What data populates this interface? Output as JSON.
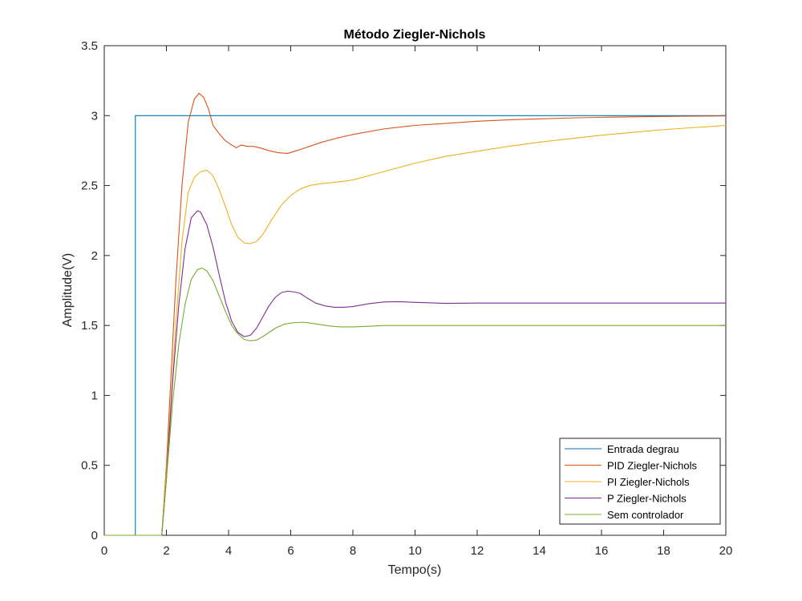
{
  "chart_data": {
    "type": "line",
    "title": "Método Ziegler-Nichols",
    "xlabel": "Tempo(s)",
    "ylabel": "Amplitude(V)",
    "xlim": [
      0,
      20
    ],
    "ylim": [
      0,
      3.5
    ],
    "xticks": [
      0,
      2,
      4,
      6,
      8,
      10,
      12,
      14,
      16,
      18,
      20
    ],
    "yticks": [
      0,
      0.5,
      1,
      1.5,
      2,
      2.5,
      3,
      3.5
    ],
    "xtick_labels": [
      "0",
      "2",
      "4",
      "6",
      "8",
      "10",
      "12",
      "14",
      "16",
      "18",
      "20"
    ],
    "ytick_labels": [
      "0",
      "0.5",
      "1",
      "1.5",
      "2",
      "2.5",
      "3",
      "3.5"
    ],
    "grid": false,
    "legend_position": "bottom-right",
    "series": [
      {
        "name": "Entrada degrau",
        "color": "#0072BD",
        "x": [
          0,
          1,
          1,
          20
        ],
        "y": [
          0,
          0,
          3,
          3
        ]
      },
      {
        "name": "PID Ziegler-Nichols",
        "color": "#D95319",
        "x": [
          0,
          1.85,
          2.0,
          2.3,
          2.5,
          2.7,
          2.9,
          3.05,
          3.2,
          3.35,
          3.5,
          3.7,
          3.9,
          4.1,
          4.25,
          4.4,
          4.6,
          4.8,
          5.0,
          5.3,
          5.6,
          5.9,
          6.2,
          6.6,
          7.0,
          7.5,
          8,
          9,
          10,
          11,
          12,
          13,
          14,
          15,
          16,
          17,
          18,
          19,
          20
        ],
        "y": [
          0,
          0,
          0.5,
          1.8,
          2.5,
          2.95,
          3.12,
          3.16,
          3.13,
          3.05,
          2.93,
          2.87,
          2.82,
          2.79,
          2.77,
          2.79,
          2.78,
          2.78,
          2.77,
          2.75,
          2.735,
          2.73,
          2.75,
          2.78,
          2.81,
          2.84,
          2.865,
          2.905,
          2.93,
          2.945,
          2.96,
          2.97,
          2.977,
          2.983,
          2.988,
          2.991,
          2.994,
          2.996,
          2.998
        ]
      },
      {
        "name": "PI Ziegler-Nichols",
        "color": "#EDB120",
        "x": [
          0,
          1.85,
          2.0,
          2.3,
          2.5,
          2.7,
          2.9,
          3.1,
          3.3,
          3.5,
          3.7,
          3.9,
          4.1,
          4.3,
          4.5,
          4.7,
          4.9,
          5.1,
          5.4,
          5.7,
          6.0,
          6.3,
          6.6,
          7.0,
          7.5,
          8,
          8.5,
          9,
          9.5,
          10,
          11,
          12,
          13,
          14,
          15,
          16,
          17,
          18,
          19,
          20
        ],
        "y": [
          0,
          0,
          0.45,
          1.5,
          2.1,
          2.45,
          2.56,
          2.6,
          2.61,
          2.57,
          2.47,
          2.35,
          2.22,
          2.13,
          2.09,
          2.085,
          2.1,
          2.15,
          2.26,
          2.36,
          2.43,
          2.475,
          2.5,
          2.515,
          2.525,
          2.54,
          2.57,
          2.6,
          2.63,
          2.66,
          2.71,
          2.745,
          2.78,
          2.81,
          2.835,
          2.86,
          2.88,
          2.9,
          2.915,
          2.93
        ]
      },
      {
        "name": "P Ziegler-Nichols",
        "color": "#7E2F8E",
        "x": [
          0,
          1.85,
          2.0,
          2.2,
          2.4,
          2.6,
          2.8,
          3.0,
          3.1,
          3.3,
          3.5,
          3.7,
          3.9,
          4.1,
          4.3,
          4.5,
          4.7,
          4.9,
          5.1,
          5.3,
          5.5,
          5.7,
          5.9,
          6.1,
          6.3,
          6.5,
          6.8,
          7.1,
          7.4,
          7.7,
          8.0,
          8.5,
          9.0,
          9.5,
          10,
          11,
          12,
          14,
          16,
          18,
          20
        ],
        "y": [
          0,
          0,
          0.4,
          1.1,
          1.65,
          2.05,
          2.27,
          2.32,
          2.31,
          2.22,
          2.06,
          1.86,
          1.67,
          1.53,
          1.45,
          1.42,
          1.43,
          1.48,
          1.56,
          1.64,
          1.7,
          1.735,
          1.745,
          1.74,
          1.73,
          1.7,
          1.66,
          1.64,
          1.63,
          1.63,
          1.635,
          1.655,
          1.668,
          1.67,
          1.665,
          1.658,
          1.66,
          1.66,
          1.66,
          1.66,
          1.66
        ]
      },
      {
        "name": "Sem controlador",
        "color": "#77AC30",
        "x": [
          0,
          1.85,
          2.0,
          2.2,
          2.4,
          2.6,
          2.8,
          3.0,
          3.15,
          3.3,
          3.5,
          3.7,
          3.9,
          4.1,
          4.3,
          4.5,
          4.7,
          4.9,
          5.1,
          5.3,
          5.5,
          5.8,
          6.1,
          6.4,
          6.7,
          7.0,
          7.3,
          7.6,
          8.0,
          8.5,
          9,
          10,
          11,
          12,
          14,
          16,
          18,
          20
        ],
        "y": [
          0,
          0,
          0.4,
          0.95,
          1.37,
          1.65,
          1.83,
          1.9,
          1.91,
          1.89,
          1.82,
          1.71,
          1.6,
          1.5,
          1.44,
          1.4,
          1.39,
          1.395,
          1.42,
          1.45,
          1.48,
          1.51,
          1.52,
          1.523,
          1.515,
          1.505,
          1.495,
          1.49,
          1.49,
          1.494,
          1.5,
          1.5,
          1.5,
          1.5,
          1.5,
          1.5,
          1.5,
          1.5
        ]
      }
    ]
  }
}
